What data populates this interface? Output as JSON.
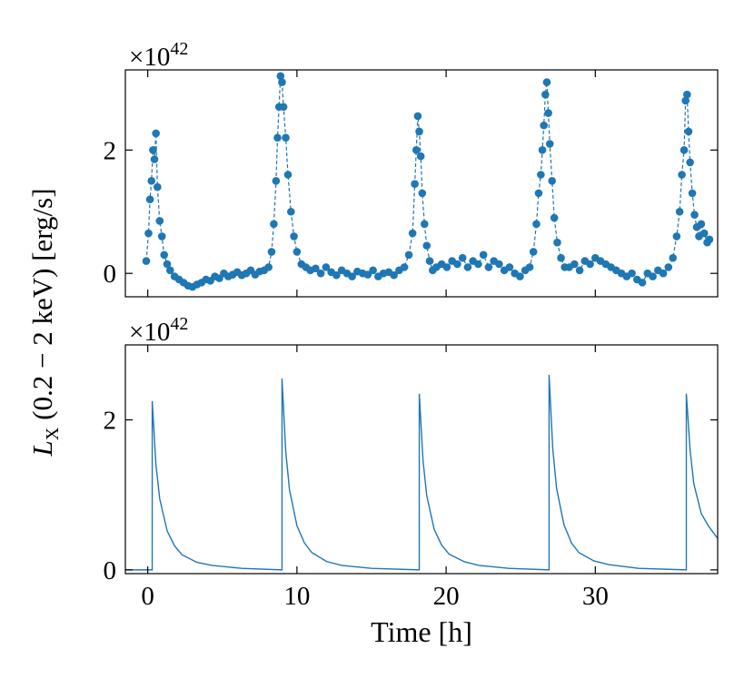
{
  "figure": {
    "ylabel": {
      "symbol": "L",
      "subscript": "X",
      "text": "(0.2 − 2 keV) [erg/s]"
    }
  },
  "chart_data": [
    {
      "type": "scatter",
      "linestyle": "dashed",
      "marker": "o",
      "color": "#1f77b4",
      "offset_label": {
        "base": "×10",
        "exponent": "42"
      },
      "xlim": [
        -1.5,
        38.2
      ],
      "ylim": [
        -0.38,
        3.3
      ],
      "xticks": [
        0,
        10,
        20,
        30
      ],
      "yticks": [
        0,
        2
      ],
      "show_xticklabels": false,
      "x": [
        -0.1,
        0.05,
        0.15,
        0.25,
        0.35,
        0.45,
        0.55,
        0.65,
        0.8,
        0.95,
        1.1,
        1.3,
        1.5,
        1.8,
        2.1,
        2.4,
        2.7,
        3.0,
        3.3,
        3.6,
        3.9,
        4.2,
        4.5,
        4.8,
        5.1,
        5.4,
        5.7,
        6.0,
        6.3,
        6.6,
        6.9,
        7.2,
        7.5,
        7.8,
        8.1,
        8.3,
        8.45,
        8.6,
        8.7,
        8.8,
        8.9,
        9.0,
        9.1,
        9.25,
        9.4,
        9.6,
        9.8,
        10.0,
        10.3,
        10.6,
        10.9,
        11.25,
        11.6,
        11.95,
        12.3,
        12.65,
        13.0,
        13.35,
        13.7,
        14.05,
        14.4,
        14.75,
        15.1,
        15.45,
        15.8,
        16.15,
        16.5,
        16.85,
        17.2,
        17.5,
        17.75,
        17.9,
        18.0,
        18.1,
        18.2,
        18.3,
        18.4,
        18.55,
        18.7,
        18.9,
        19.1,
        19.35,
        19.7,
        20.05,
        20.4,
        20.75,
        21.1,
        21.45,
        21.8,
        22.15,
        22.5,
        22.85,
        23.2,
        23.55,
        23.9,
        24.25,
        24.6,
        24.95,
        25.3,
        25.6,
        25.85,
        26.05,
        26.2,
        26.35,
        26.45,
        26.55,
        26.65,
        26.75,
        26.85,
        26.95,
        27.1,
        27.25,
        27.45,
        27.7,
        27.95,
        28.25,
        28.6,
        28.95,
        29.3,
        29.65,
        30.0,
        30.35,
        30.7,
        31.05,
        31.4,
        31.75,
        32.1,
        32.45,
        32.8,
        33.15,
        33.5,
        33.85,
        34.2,
        34.55,
        34.9,
        35.2,
        35.45,
        35.65,
        35.8,
        35.95,
        36.05,
        36.15,
        36.25,
        36.35,
        36.5,
        36.65,
        36.8,
        36.95,
        37.1,
        37.3,
        37.5,
        37.65
      ],
      "values": [
        0.2,
        0.65,
        1.2,
        1.5,
        2.0,
        1.85,
        2.27,
        1.4,
        0.85,
        0.6,
        0.3,
        0.15,
        0.05,
        -0.05,
        -0.1,
        -0.15,
        -0.2,
        -0.22,
        -0.18,
        -0.15,
        -0.1,
        -0.12,
        -0.05,
        -0.08,
        0.0,
        -0.05,
        -0.02,
        0.02,
        -0.03,
        0.0,
        0.05,
        -0.02,
        0.03,
        0.05,
        0.1,
        0.35,
        0.8,
        1.5,
        2.2,
        2.7,
        3.2,
        3.1,
        2.7,
        2.2,
        1.6,
        1.0,
        0.6,
        0.35,
        0.15,
        0.1,
        0.05,
        0.08,
        0.0,
        0.1,
        0.02,
        -0.03,
        0.05,
        0.0,
        -0.05,
        0.03,
        0.0,
        -0.02,
        0.05,
        -0.05,
        0.0,
        0.02,
        -0.03,
        0.05,
        0.1,
        0.3,
        0.65,
        1.45,
        2.0,
        2.55,
        2.3,
        1.9,
        1.3,
        0.8,
        0.45,
        0.2,
        0.05,
        0.1,
        0.15,
        0.1,
        0.2,
        0.15,
        0.25,
        0.1,
        0.2,
        0.15,
        0.3,
        0.1,
        0.2,
        0.15,
        0.05,
        0.1,
        0.0,
        -0.05,
        0.05,
        0.1,
        0.35,
        0.8,
        1.3,
        1.6,
        2.0,
        2.4,
        2.9,
        3.1,
        2.6,
        2.1,
        1.5,
        0.9,
        0.5,
        0.25,
        0.1,
        0.1,
        0.15,
        0.05,
        0.2,
        0.15,
        0.25,
        0.2,
        0.15,
        0.1,
        0.05,
        0.0,
        -0.05,
        0.0,
        -0.1,
        -0.15,
        0.0,
        -0.05,
        0.05,
        0.0,
        0.1,
        0.25,
        0.6,
        1.0,
        1.6,
        2.0,
        2.8,
        2.9,
        2.3,
        1.8,
        1.3,
        0.95,
        0.75,
        0.6,
        0.8,
        0.65,
        0.5,
        0.55
      ]
    },
    {
      "type": "line",
      "color": "#1f77b4",
      "offset_label": {
        "base": "×10",
        "exponent": "42"
      },
      "xlim": [
        -1.5,
        38.2
      ],
      "ylim": [
        -0.05,
        3.0
      ],
      "xticks": [
        0,
        10,
        20,
        30
      ],
      "yticks": [
        0,
        2
      ],
      "show_xticklabels": true,
      "xlabel": "Time [h]",
      "x": [
        -1.5,
        0.3,
        0.3,
        0.55,
        0.8,
        1.3,
        1.8,
        2.3,
        3.3,
        4.3,
        6.3,
        9.0,
        9.0,
        9.25,
        9.5,
        10.0,
        10.5,
        11.0,
        12,
        13,
        15,
        18.2,
        18.2,
        18.45,
        18.7,
        19.2,
        19.7,
        20.2,
        21.2,
        22.2,
        24.2,
        26.9,
        26.9,
        27.15,
        27.4,
        27.9,
        28.4,
        28.9,
        29.9,
        30.9,
        32.9,
        36.1,
        36.1,
        36.35,
        36.6,
        37.1,
        37.6,
        38.2
      ],
      "values": [
        0,
        0,
        2.25,
        1.4,
        0.95,
        0.52,
        0.32,
        0.2,
        0.1,
        0.06,
        0.02,
        0,
        2.55,
        1.58,
        1.07,
        0.59,
        0.36,
        0.23,
        0.11,
        0.06,
        0.02,
        0,
        2.35,
        1.46,
        0.99,
        0.54,
        0.33,
        0.21,
        0.11,
        0.06,
        0.02,
        0,
        2.6,
        1.61,
        1.09,
        0.6,
        0.36,
        0.23,
        0.12,
        0.07,
        0.02,
        0,
        2.35,
        1.6,
        1.15,
        0.75,
        0.58,
        0.42
      ]
    }
  ]
}
